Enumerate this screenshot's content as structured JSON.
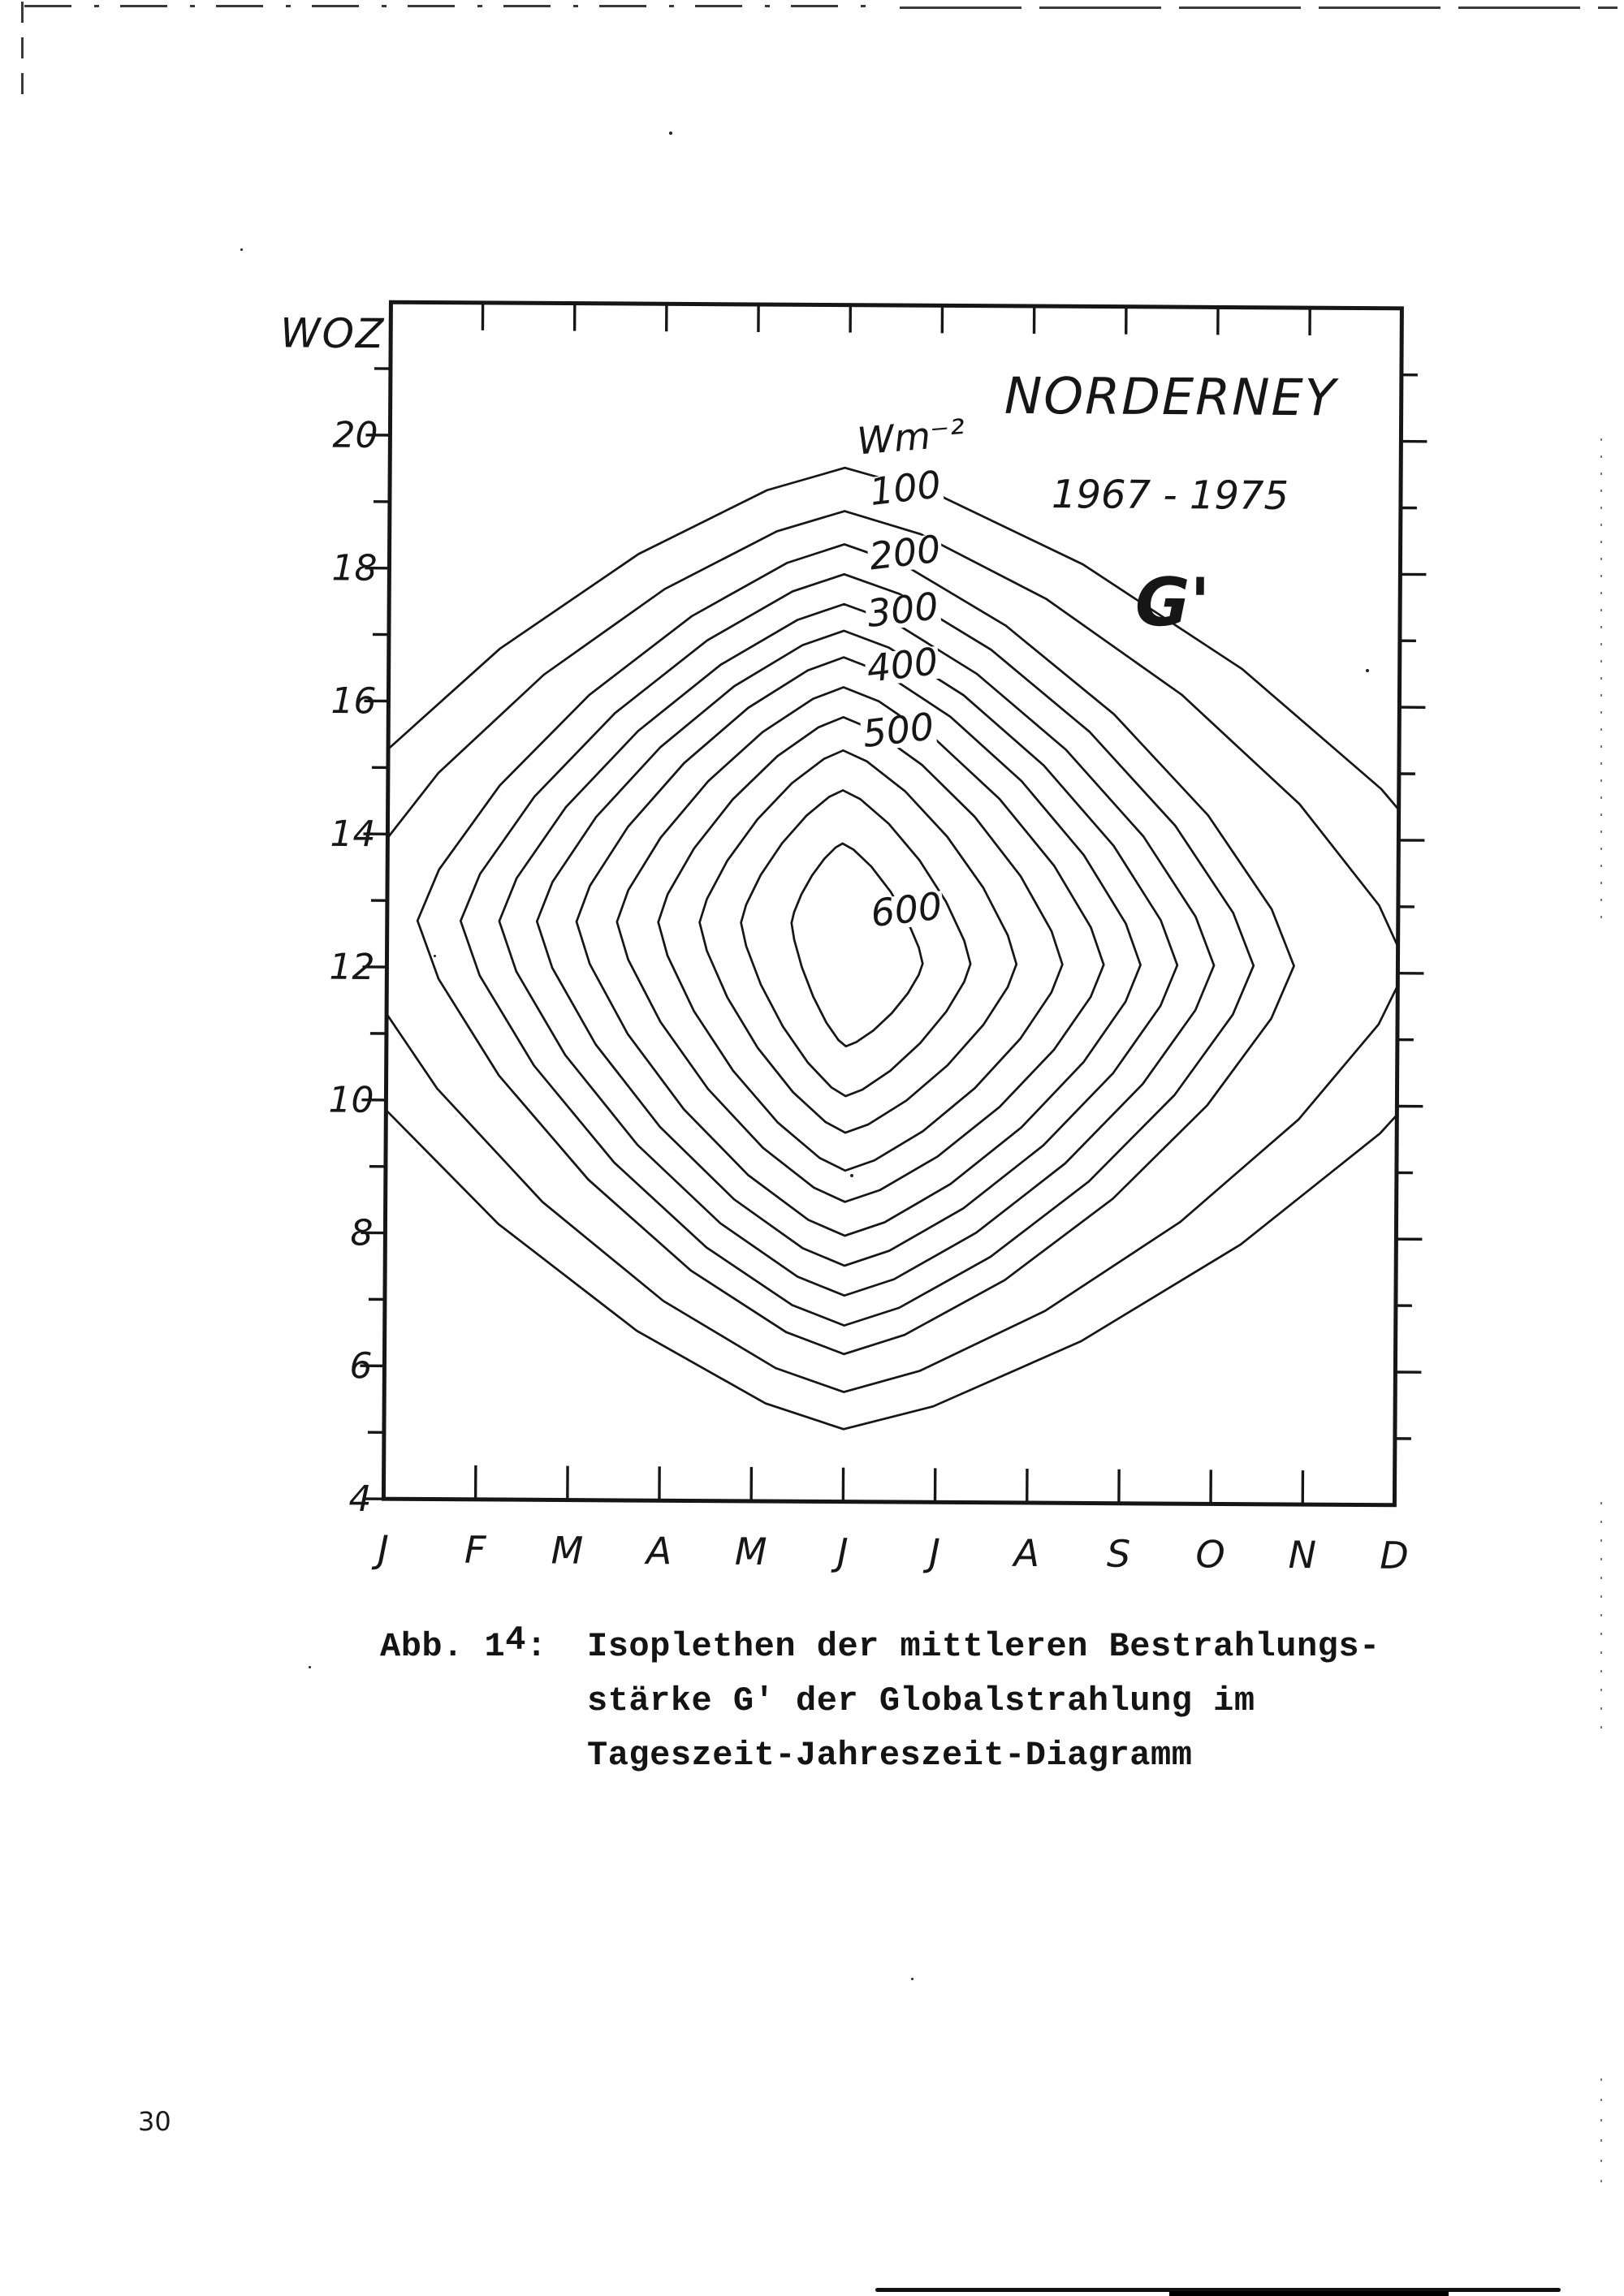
{
  "page": {
    "number": "30",
    "paper_color": "#ffffff",
    "ink_color": "#161616"
  },
  "figure": {
    "y_axis_title": "WOZ",
    "unit_label": "Wm⁻²",
    "station": "NORDERNEY",
    "period": "1967 - 1975",
    "quantity_symbol": "G'"
  },
  "caption": {
    "label": "Abb. 14:",
    "label_parts": [
      "Abb. 1",
      "4",
      ":"
    ],
    "lines": [
      "Isoplethen der mittleren Bestrahlungs-",
      "stärke G' der Globalstrahlung im",
      "Tageszeit-Jahreszeit-Diagramm"
    ]
  },
  "chart_data": {
    "type": "contour",
    "title": "NORDERNEY",
    "subtitle": "1967 - 1975",
    "quantity": "G'",
    "unit": "Wm⁻²",
    "ylabel": "WOZ",
    "x_tick_labels": [
      "J",
      "F",
      "M",
      "A",
      "M",
      "J",
      "J",
      "A",
      "S",
      "O",
      "N",
      "D"
    ],
    "y_tick_labels": [
      20,
      18,
      16,
      14,
      12,
      10,
      8,
      6,
      4
    ],
    "y_range_hours": [
      4,
      22
    ],
    "x_range_month_index": [
      0,
      11
    ],
    "contour_interval_wm2": 50,
    "contours": [
      {
        "level": 50,
        "top": 19.55,
        "bottom": 5.09,
        "left": -1.3,
        "right": 12.2
      },
      {
        "level": 100,
        "top": 18.9,
        "bottom": 5.65,
        "left": -0.5,
        "right": 11.1
      },
      {
        "level": 150,
        "top": 18.4,
        "bottom": 6.22,
        "left": 0.33,
        "right": 9.87
      },
      {
        "level": 200,
        "top": 17.95,
        "bottom": 6.65,
        "left": 0.8,
        "right": 9.43
      },
      {
        "level": 250,
        "top": 17.5,
        "bottom": 7.1,
        "left": 1.22,
        "right": 9.0
      },
      {
        "level": 300,
        "top": 17.1,
        "bottom": 7.55,
        "left": 1.63,
        "right": 8.6
      },
      {
        "level": 350,
        "top": 16.7,
        "bottom": 8.0,
        "left": 2.06,
        "right": 8.2
      },
      {
        "level": 400,
        "top": 16.25,
        "bottom": 8.51,
        "left": 2.5,
        "right": 7.8
      },
      {
        "level": 450,
        "top": 15.8,
        "bottom": 8.98,
        "left": 2.95,
        "right": 7.35
      },
      {
        "level": 500,
        "top": 15.3,
        "bottom": 9.55,
        "left": 3.4,
        "right": 6.85
      },
      {
        "level": 550,
        "top": 14.7,
        "bottom": 10.1,
        "left": 3.85,
        "right": 6.35
      },
      {
        "level": 600,
        "top": 13.9,
        "bottom": 10.85,
        "left": 4.4,
        "right": 5.83
      }
    ],
    "contour_labels": [
      {
        "value": "100",
        "m": 5.61,
        "h": 19.24
      },
      {
        "value": "200",
        "m": 5.61,
        "h": 18.27
      },
      {
        "value": "300",
        "m": 5.59,
        "h": 17.41
      },
      {
        "value": "400",
        "m": 5.59,
        "h": 16.58
      },
      {
        "value": "500",
        "m": 5.55,
        "h": 15.6
      },
      {
        "value": "600",
        "m": 5.65,
        "h": 12.9
      }
    ]
  }
}
